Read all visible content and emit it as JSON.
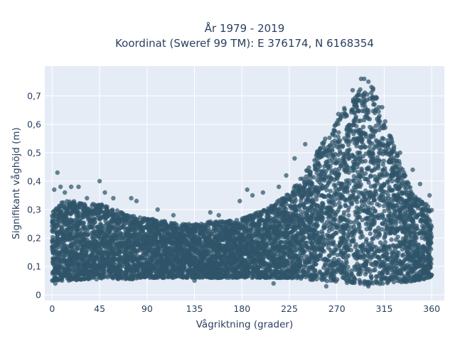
{
  "chart_data": {
    "type": "scatter",
    "title_line1": "År 1979 - 2019",
    "title_line2": "Koordinat (Sweref 99 TM): E 376174, N 6168354",
    "xlabel": "Vågriktning (grader)",
    "ylabel": "Signifikant våghöjd (m)",
    "xlim": [
      -7,
      372
    ],
    "ylim": [
      -0.02,
      0.805
    ],
    "x_ticks": [
      0,
      45,
      90,
      135,
      180,
      225,
      270,
      315,
      360
    ],
    "x_tick_labels": [
      "0",
      "45",
      "90",
      "135",
      "180",
      "225",
      "270",
      "315",
      "360"
    ],
    "y_ticks": [
      0,
      0.1,
      0.2,
      0.3,
      0.4,
      0.5,
      0.6,
      0.7
    ],
    "y_tick_labels": [
      "0",
      "0,1",
      "0,2",
      "0,3",
      "0,4",
      "0,5",
      "0,6",
      "0,7"
    ],
    "grid": true,
    "marker_color": "#2f5469",
    "plot_bg": "#e5ecf6",
    "envelope": {
      "x": [
        0,
        10,
        20,
        30,
        45,
        60,
        75,
        90,
        105,
        120,
        135,
        150,
        165,
        180,
        195,
        210,
        225,
        240,
        255,
        270,
        285,
        295,
        305,
        315,
        325,
        335,
        345,
        355,
        360
      ],
      "min": [
        0.05,
        0.05,
        0.05,
        0.055,
        0.055,
        0.055,
        0.055,
        0.06,
        0.06,
        0.06,
        0.06,
        0.06,
        0.06,
        0.06,
        0.06,
        0.06,
        0.06,
        0.055,
        0.05,
        0.045,
        0.04,
        0.035,
        0.035,
        0.04,
        0.045,
        0.045,
        0.05,
        0.05,
        0.06
      ],
      "max": [
        0.3,
        0.33,
        0.33,
        0.32,
        0.32,
        0.3,
        0.28,
        0.27,
        0.26,
        0.25,
        0.25,
        0.26,
        0.26,
        0.27,
        0.29,
        0.32,
        0.36,
        0.43,
        0.53,
        0.63,
        0.7,
        0.74,
        0.73,
        0.62,
        0.52,
        0.42,
        0.35,
        0.32,
        0.3
      ]
    },
    "outliers": [
      [
        2,
        0.37
      ],
      [
        5,
        0.43
      ],
      [
        8,
        0.38
      ],
      [
        12,
        0.36
      ],
      [
        18,
        0.38
      ],
      [
        25,
        0.38
      ],
      [
        33,
        0.34
      ],
      [
        45,
        0.4
      ],
      [
        50,
        0.36
      ],
      [
        58,
        0.34
      ],
      [
        75,
        0.34
      ],
      [
        80,
        0.33
      ],
      [
        100,
        0.3
      ],
      [
        115,
        0.28
      ],
      [
        150,
        0.29
      ],
      [
        158,
        0.28
      ],
      [
        178,
        0.33
      ],
      [
        185,
        0.37
      ],
      [
        190,
        0.35
      ],
      [
        200,
        0.36
      ],
      [
        215,
        0.38
      ],
      [
        222,
        0.42
      ],
      [
        230,
        0.48
      ],
      [
        240,
        0.53
      ],
      [
        285,
        0.72
      ],
      [
        293,
        0.76
      ],
      [
        296,
        0.76
      ],
      [
        300,
        0.75
      ],
      [
        313,
        0.66
      ],
      [
        320,
        0.56
      ],
      [
        330,
        0.5
      ],
      [
        342,
        0.44
      ],
      [
        349,
        0.39
      ],
      [
        358,
        0.35
      ],
      [
        0,
        0.05
      ],
      [
        3,
        0.04
      ],
      [
        135,
        0.05
      ],
      [
        210,
        0.04
      ],
      [
        260,
        0.03
      ],
      [
        300,
        0.03
      ]
    ]
  }
}
